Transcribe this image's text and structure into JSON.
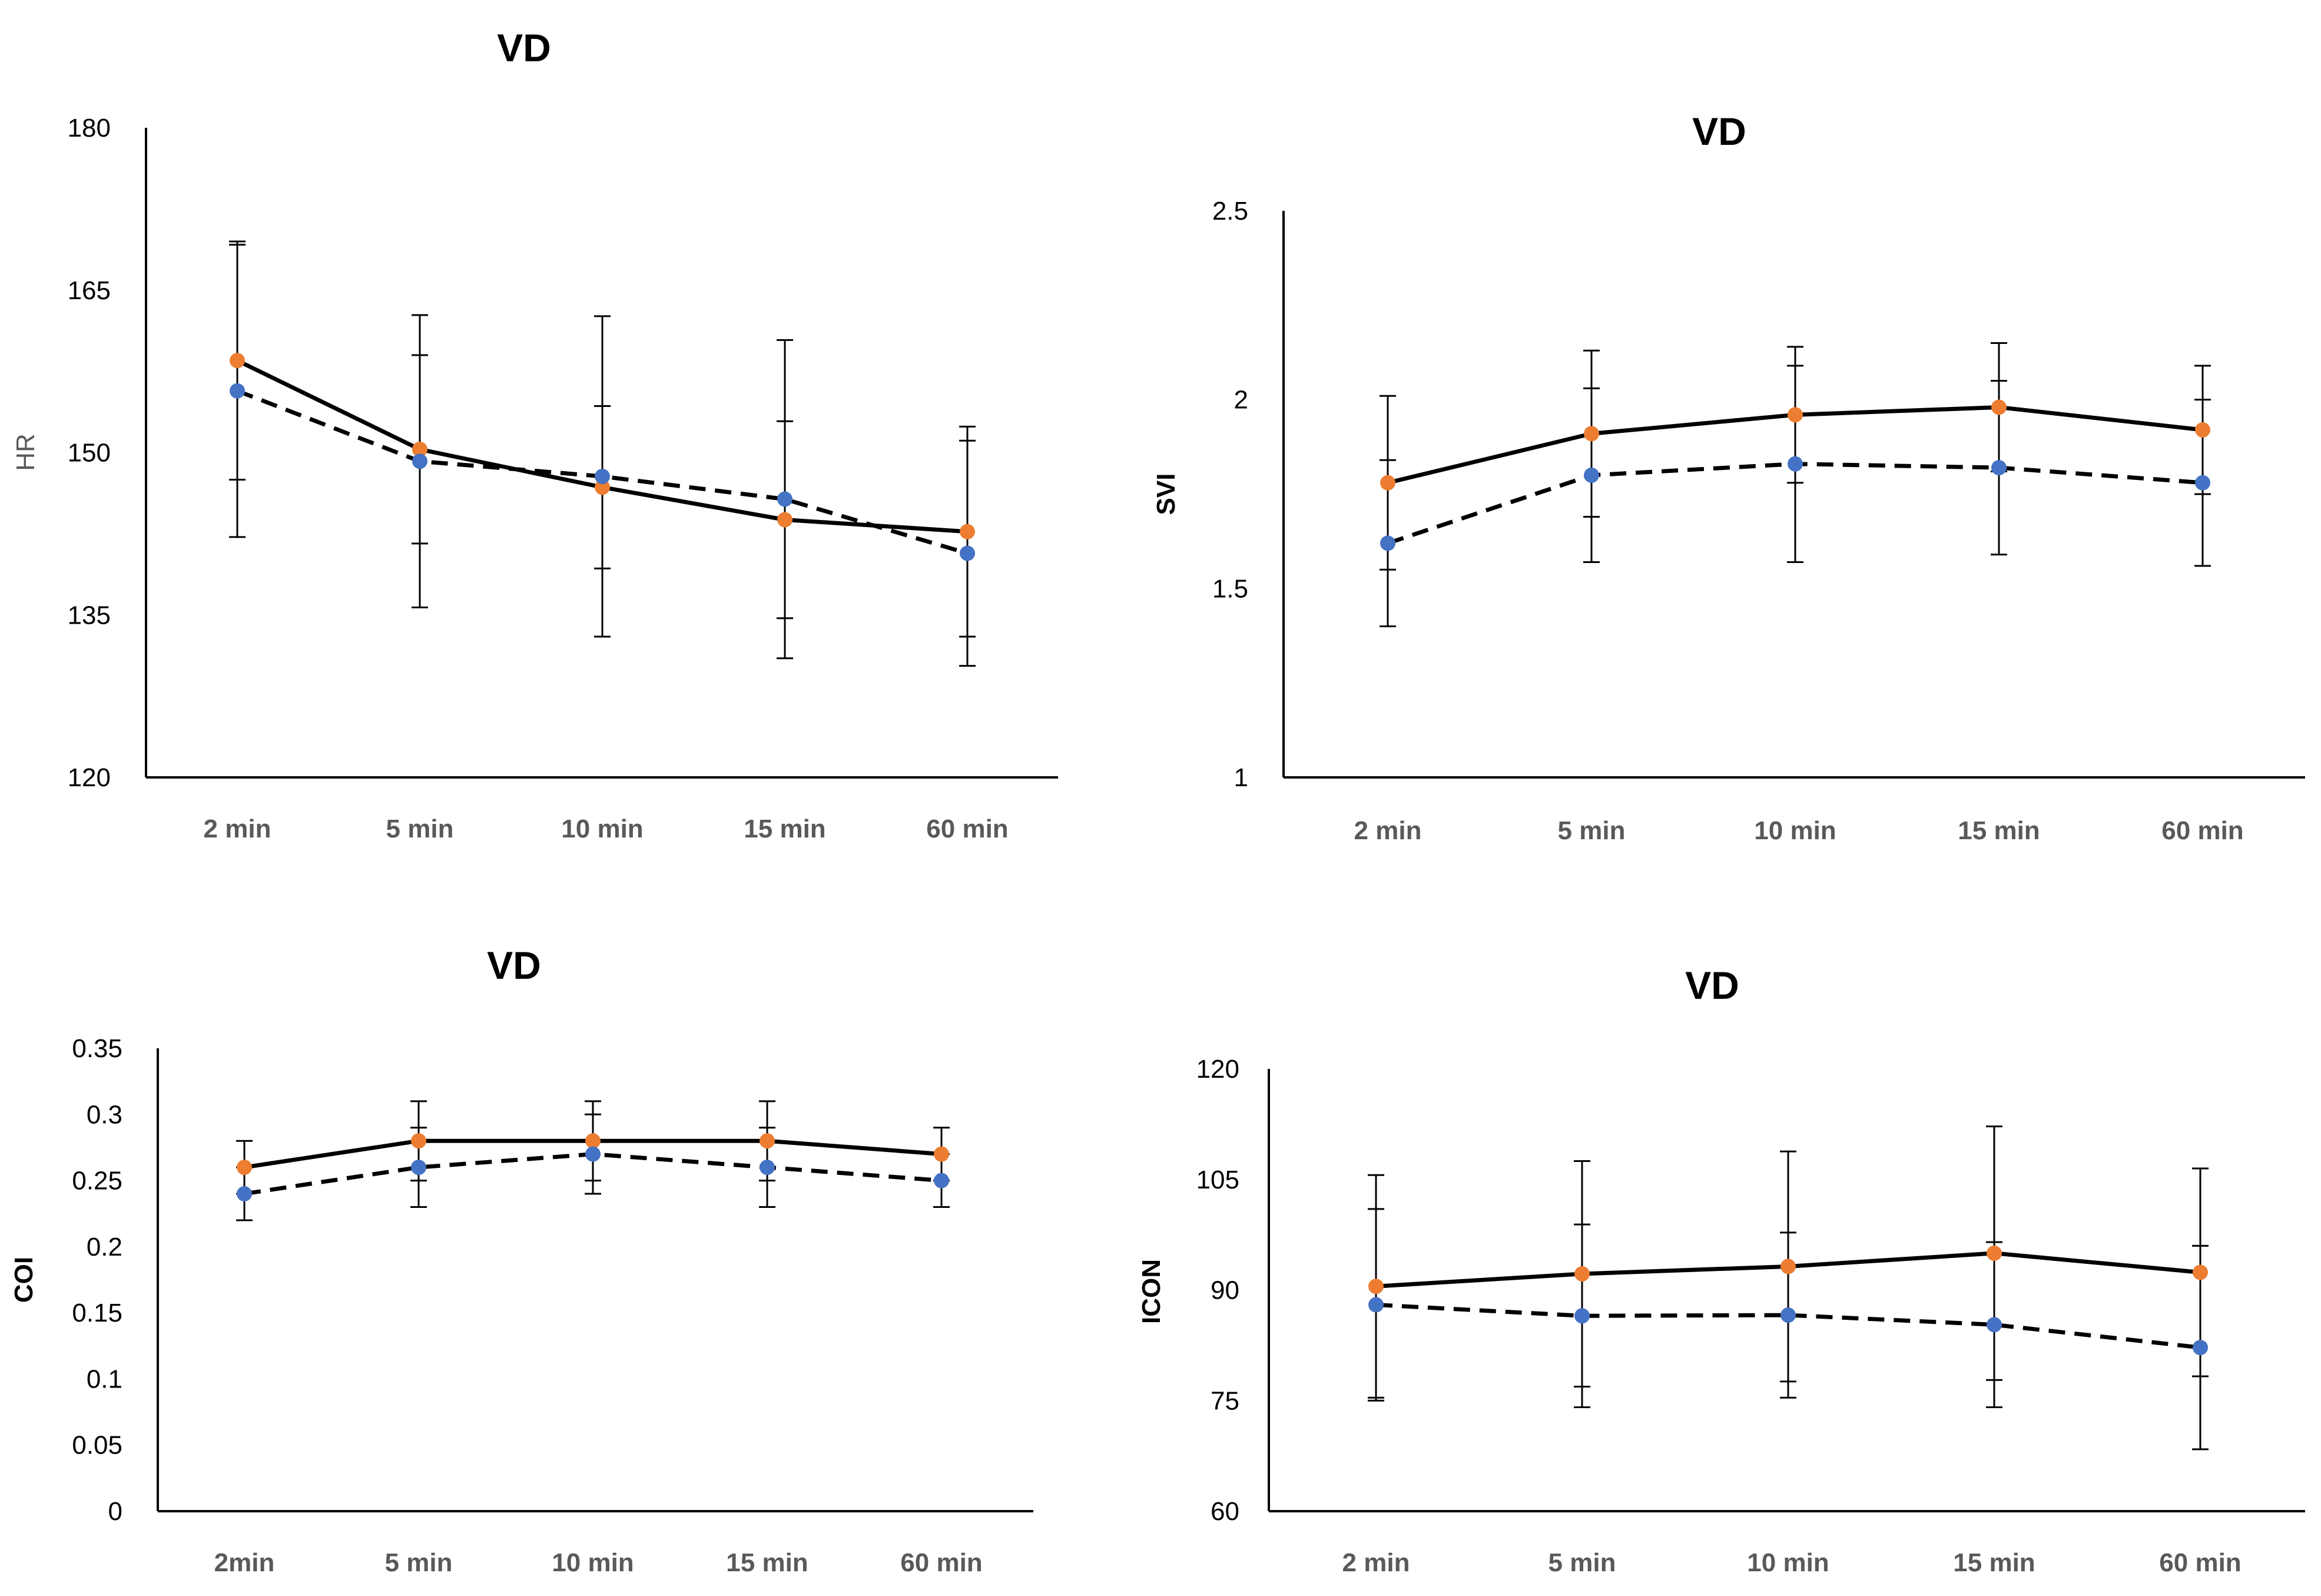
{
  "colors": {
    "solid_marker": "#ED7D31",
    "dashed_marker": "#4472C4",
    "line": "#000000",
    "error_bar": "#000000"
  },
  "chart_data": [
    {
      "type": "line",
      "title": "VD",
      "ylabel": "HR",
      "ylim": [
        120,
        180
      ],
      "yticks": [
        "120",
        "135",
        "150",
        "165",
        "180"
      ],
      "categories": [
        "2 min",
        "5 min",
        "10 min",
        "15 min",
        "60 min"
      ],
      "series": [
        {
          "name": "solid",
          "style": "solid",
          "values": [
            158.5,
            150.3,
            146.8,
            143.8,
            142.7
          ],
          "err": [
            11.0,
            8.7,
            7.5,
            9.1,
            9.7
          ]
        },
        {
          "name": "dashed",
          "style": "dashed",
          "values": [
            155.7,
            149.2,
            147.8,
            145.7,
            140.7
          ],
          "err": [
            13.5,
            13.5,
            14.8,
            14.7,
            10.4
          ]
        }
      ]
    },
    {
      "type": "line",
      "title": "VD",
      "ylabel": "SVI",
      "ylim": [
        1,
        2.5
      ],
      "yticks": [
        "1",
        "1.5",
        "2",
        "2.5"
      ],
      "categories": [
        "2 min",
        "5 min",
        "10 min",
        "15 min",
        "60 min"
      ],
      "series": [
        {
          "name": "solid",
          "style": "solid",
          "values": [
            1.78,
            1.91,
            1.96,
            1.98,
            1.92
          ],
          "err": [
            0.23,
            0.22,
            0.18,
            0.17,
            0.17
          ]
        },
        {
          "name": "dashed",
          "style": "dashed",
          "values": [
            1.62,
            1.8,
            1.83,
            1.82,
            1.78
          ],
          "err": [
            0.22,
            0.23,
            0.26,
            0.23,
            0.22
          ]
        }
      ]
    },
    {
      "type": "line",
      "title": "VD",
      "ylabel": "COI",
      "ylim": [
        0,
        0.35
      ],
      "yticks": [
        "0",
        "0.05",
        "0.1",
        "0.15",
        "0.2",
        "0.25",
        "0.3",
        "0.35"
      ],
      "categories": [
        "2min",
        "5 min",
        "10 min",
        "15 min",
        "60 min"
      ],
      "series": [
        {
          "name": "solid",
          "style": "solid",
          "values": [
            0.26,
            0.28,
            0.28,
            0.28,
            0.27
          ],
          "err": [
            0.02,
            0.03,
            0.03,
            0.03,
            0.02
          ]
        },
        {
          "name": "dashed",
          "style": "dashed",
          "values": [
            0.24,
            0.26,
            0.27,
            0.26,
            0.25
          ],
          "err": [
            0.02,
            0.03,
            0.03,
            0.03,
            0.02
          ]
        }
      ]
    },
    {
      "type": "line",
      "title": "VD",
      "ylabel": "ICON",
      "ylim": [
        60,
        120
      ],
      "yticks": [
        "60",
        "75",
        "90",
        "105",
        "120"
      ],
      "categories": [
        "2 min",
        "5 min",
        "10 min",
        "15 min",
        "60 min"
      ],
      "series": [
        {
          "name": "solid",
          "style": "solid",
          "values": [
            90.5,
            92.2,
            93.2,
            95.0,
            92.4
          ],
          "err": [
            15.1,
            15.3,
            15.6,
            17.2,
            14.1
          ]
        },
        {
          "name": "dashed",
          "style": "dashed",
          "values": [
            88.0,
            86.5,
            86.6,
            85.3,
            82.2
          ],
          "err": [
            13.0,
            12.4,
            11.2,
            11.2,
            13.8
          ]
        }
      ]
    }
  ]
}
